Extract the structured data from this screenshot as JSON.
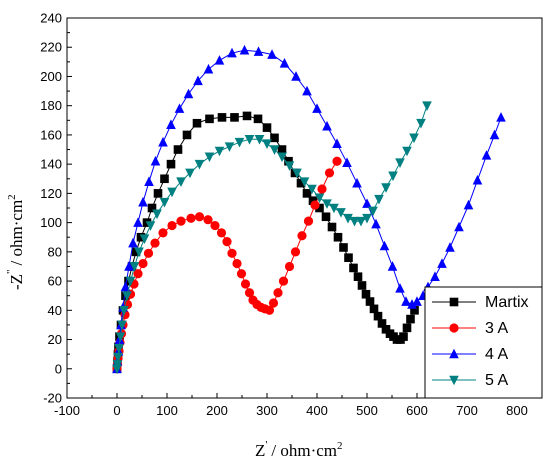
{
  "chart_data": {
    "type": "scatter",
    "title": "",
    "xlabel": "Z' / ohm·cm²",
    "ylabel": "-Z\" / ohm·cm²",
    "xlabel_parts": {
      "main": "Z",
      "prime": "'",
      "unit": "/ ohm·cm",
      "sup": "2"
    },
    "ylabel_parts": {
      "main": "-Z",
      "prime": "\"",
      "unit": "/ ohm·cm",
      "sup": "2"
    },
    "xlim": [
      -100,
      850
    ],
    "ylim": [
      -20,
      240
    ],
    "xticks": [
      -100,
      0,
      100,
      200,
      300,
      400,
      500,
      600,
      700,
      800
    ],
    "yticks": [
      -20,
      0,
      20,
      40,
      60,
      80,
      100,
      120,
      140,
      160,
      180,
      200,
      220,
      240
    ],
    "grid": false,
    "legend_position": "bottom-right",
    "series": [
      {
        "name": "Martix",
        "color": "#000000",
        "marker": "square",
        "points": [
          [
            0,
            0
          ],
          [
            1,
            5
          ],
          [
            2,
            10
          ],
          [
            3,
            15
          ],
          [
            5,
            22
          ],
          [
            8,
            30
          ],
          [
            12,
            40
          ],
          [
            17,
            50
          ],
          [
            23,
            60
          ],
          [
            30,
            70
          ],
          [
            38,
            80
          ],
          [
            48,
            90
          ],
          [
            60,
            100
          ],
          [
            70,
            110
          ],
          [
            82,
            120
          ],
          [
            95,
            130
          ],
          [
            108,
            140
          ],
          [
            122,
            150
          ],
          [
            140,
            160
          ],
          [
            160,
            168
          ],
          [
            185,
            171
          ],
          [
            210,
            172
          ],
          [
            235,
            172
          ],
          [
            260,
            173
          ],
          [
            282,
            171
          ],
          [
            300,
            165
          ],
          [
            315,
            158
          ],
          [
            330,
            150
          ],
          [
            343,
            142
          ],
          [
            356,
            134
          ],
          [
            368,
            127
          ],
          [
            380,
            120
          ],
          [
            392,
            115
          ],
          [
            405,
            110
          ],
          [
            418,
            104
          ],
          [
            430,
            97
          ],
          [
            442,
            90
          ],
          [
            453,
            83
          ],
          [
            463,
            76
          ],
          [
            473,
            69
          ],
          [
            482,
            63
          ],
          [
            490,
            57
          ],
          [
            498,
            51
          ],
          [
            506,
            46
          ],
          [
            514,
            41
          ],
          [
            522,
            36
          ],
          [
            530,
            31
          ],
          [
            538,
            27
          ],
          [
            546,
            24
          ],
          [
            553,
            22
          ],
          [
            560,
            20
          ],
          [
            567,
            20
          ],
          [
            573,
            22
          ],
          [
            580,
            28
          ],
          [
            587,
            34
          ],
          [
            595,
            40
          ]
        ]
      },
      {
        "name": "3 A",
        "color": "#ff0000",
        "marker": "circle",
        "points": [
          [
            0,
            0
          ],
          [
            1,
            3
          ],
          [
            2,
            7
          ],
          [
            4,
            12
          ],
          [
            6,
            18
          ],
          [
            9,
            24
          ],
          [
            12,
            30
          ],
          [
            16,
            37
          ],
          [
            21,
            44
          ],
          [
            27,
            51
          ],
          [
            34,
            58
          ],
          [
            42,
            65
          ],
          [
            52,
            72
          ],
          [
            63,
            79
          ],
          [
            76,
            86
          ],
          [
            92,
            93
          ],
          [
            110,
            98
          ],
          [
            128,
            101
          ],
          [
            148,
            103
          ],
          [
            165,
            104
          ],
          [
            182,
            102
          ],
          [
            196,
            98
          ],
          [
            209,
            93
          ],
          [
            220,
            87
          ],
          [
            230,
            79
          ],
          [
            240,
            72
          ],
          [
            249,
            65
          ],
          [
            257,
            58
          ],
          [
            265,
            52
          ],
          [
            272,
            47
          ],
          [
            280,
            44
          ],
          [
            288,
            42
          ],
          [
            296,
            41
          ],
          [
            305,
            40
          ],
          [
            313,
            45
          ],
          [
            322,
            52
          ],
          [
            333,
            60
          ],
          [
            345,
            70
          ],
          [
            357,
            80
          ],
          [
            370,
            91
          ],
          [
            383,
            101
          ],
          [
            396,
            112
          ],
          [
            410,
            123
          ],
          [
            425,
            134
          ],
          [
            440,
            142
          ]
        ]
      },
      {
        "name": "4 A",
        "color": "#0000ff",
        "marker": "triangle-up",
        "points": [
          [
            0,
            0
          ],
          [
            1,
            5
          ],
          [
            3,
            12
          ],
          [
            5,
            20
          ],
          [
            8,
            30
          ],
          [
            12,
            42
          ],
          [
            17,
            56
          ],
          [
            24,
            70
          ],
          [
            32,
            86
          ],
          [
            42,
            100
          ],
          [
            52,
            114
          ],
          [
            64,
            128
          ],
          [
            77,
            142
          ],
          [
            92,
            155
          ],
          [
            108,
            167
          ],
          [
            125,
            178
          ],
          [
            143,
            188
          ],
          [
            162,
            197
          ],
          [
            183,
            205
          ],
          [
            205,
            211
          ],
          [
            230,
            216
          ],
          [
            255,
            218
          ],
          [
            283,
            217
          ],
          [
            310,
            215
          ],
          [
            335,
            209
          ],
          [
            358,
            200
          ],
          [
            380,
            190
          ],
          [
            400,
            178
          ],
          [
            420,
            166
          ],
          [
            440,
            154
          ],
          [
            460,
            141
          ],
          [
            480,
            127
          ],
          [
            500,
            113
          ],
          [
            518,
            99
          ],
          [
            535,
            84
          ],
          [
            551,
            70
          ],
          [
            566,
            55
          ],
          [
            578,
            46
          ],
          [
            590,
            44
          ],
          [
            600,
            46
          ],
          [
            612,
            50
          ],
          [
            622,
            56
          ],
          [
            636,
            63
          ],
          [
            650,
            72
          ],
          [
            666,
            83
          ],
          [
            684,
            97
          ],
          [
            703,
            112
          ],
          [
            721,
            129
          ],
          [
            739,
            146
          ],
          [
            755,
            160
          ],
          [
            768,
            172
          ]
        ]
      },
      {
        "name": "5 A",
        "color": "#008080",
        "marker": "triangle-down",
        "points": [
          [
            0,
            0
          ],
          [
            1,
            3
          ],
          [
            2,
            8
          ],
          [
            4,
            14
          ],
          [
            7,
            22
          ],
          [
            10,
            30
          ],
          [
            14,
            40
          ],
          [
            20,
            50
          ],
          [
            27,
            60
          ],
          [
            35,
            70
          ],
          [
            44,
            80
          ],
          [
            55,
            89
          ],
          [
            67,
            98
          ],
          [
            80,
            106
          ],
          [
            95,
            114
          ],
          [
            110,
            121
          ],
          [
            128,
            128
          ],
          [
            146,
            134
          ],
          [
            165,
            140
          ],
          [
            185,
            145
          ],
          [
            205,
            149
          ],
          [
            225,
            152
          ],
          [
            245,
            155
          ],
          [
            265,
            157
          ],
          [
            285,
            157
          ],
          [
            300,
            154
          ],
          [
            315,
            150
          ],
          [
            330,
            145
          ],
          [
            345,
            139
          ],
          [
            360,
            134
          ],
          [
            375,
            128
          ],
          [
            390,
            123
          ],
          [
            405,
            117
          ],
          [
            420,
            113
          ],
          [
            434,
            110
          ],
          [
            448,
            107
          ],
          [
            462,
            103
          ],
          [
            475,
            101
          ],
          [
            488,
            101
          ],
          [
            500,
            103
          ],
          [
            512,
            108
          ],
          [
            524,
            116
          ],
          [
            538,
            124
          ],
          [
            552,
            132
          ],
          [
            566,
            141
          ],
          [
            580,
            149
          ],
          [
            594,
            158
          ],
          [
            608,
            168
          ],
          [
            620,
            180
          ]
        ]
      }
    ]
  }
}
